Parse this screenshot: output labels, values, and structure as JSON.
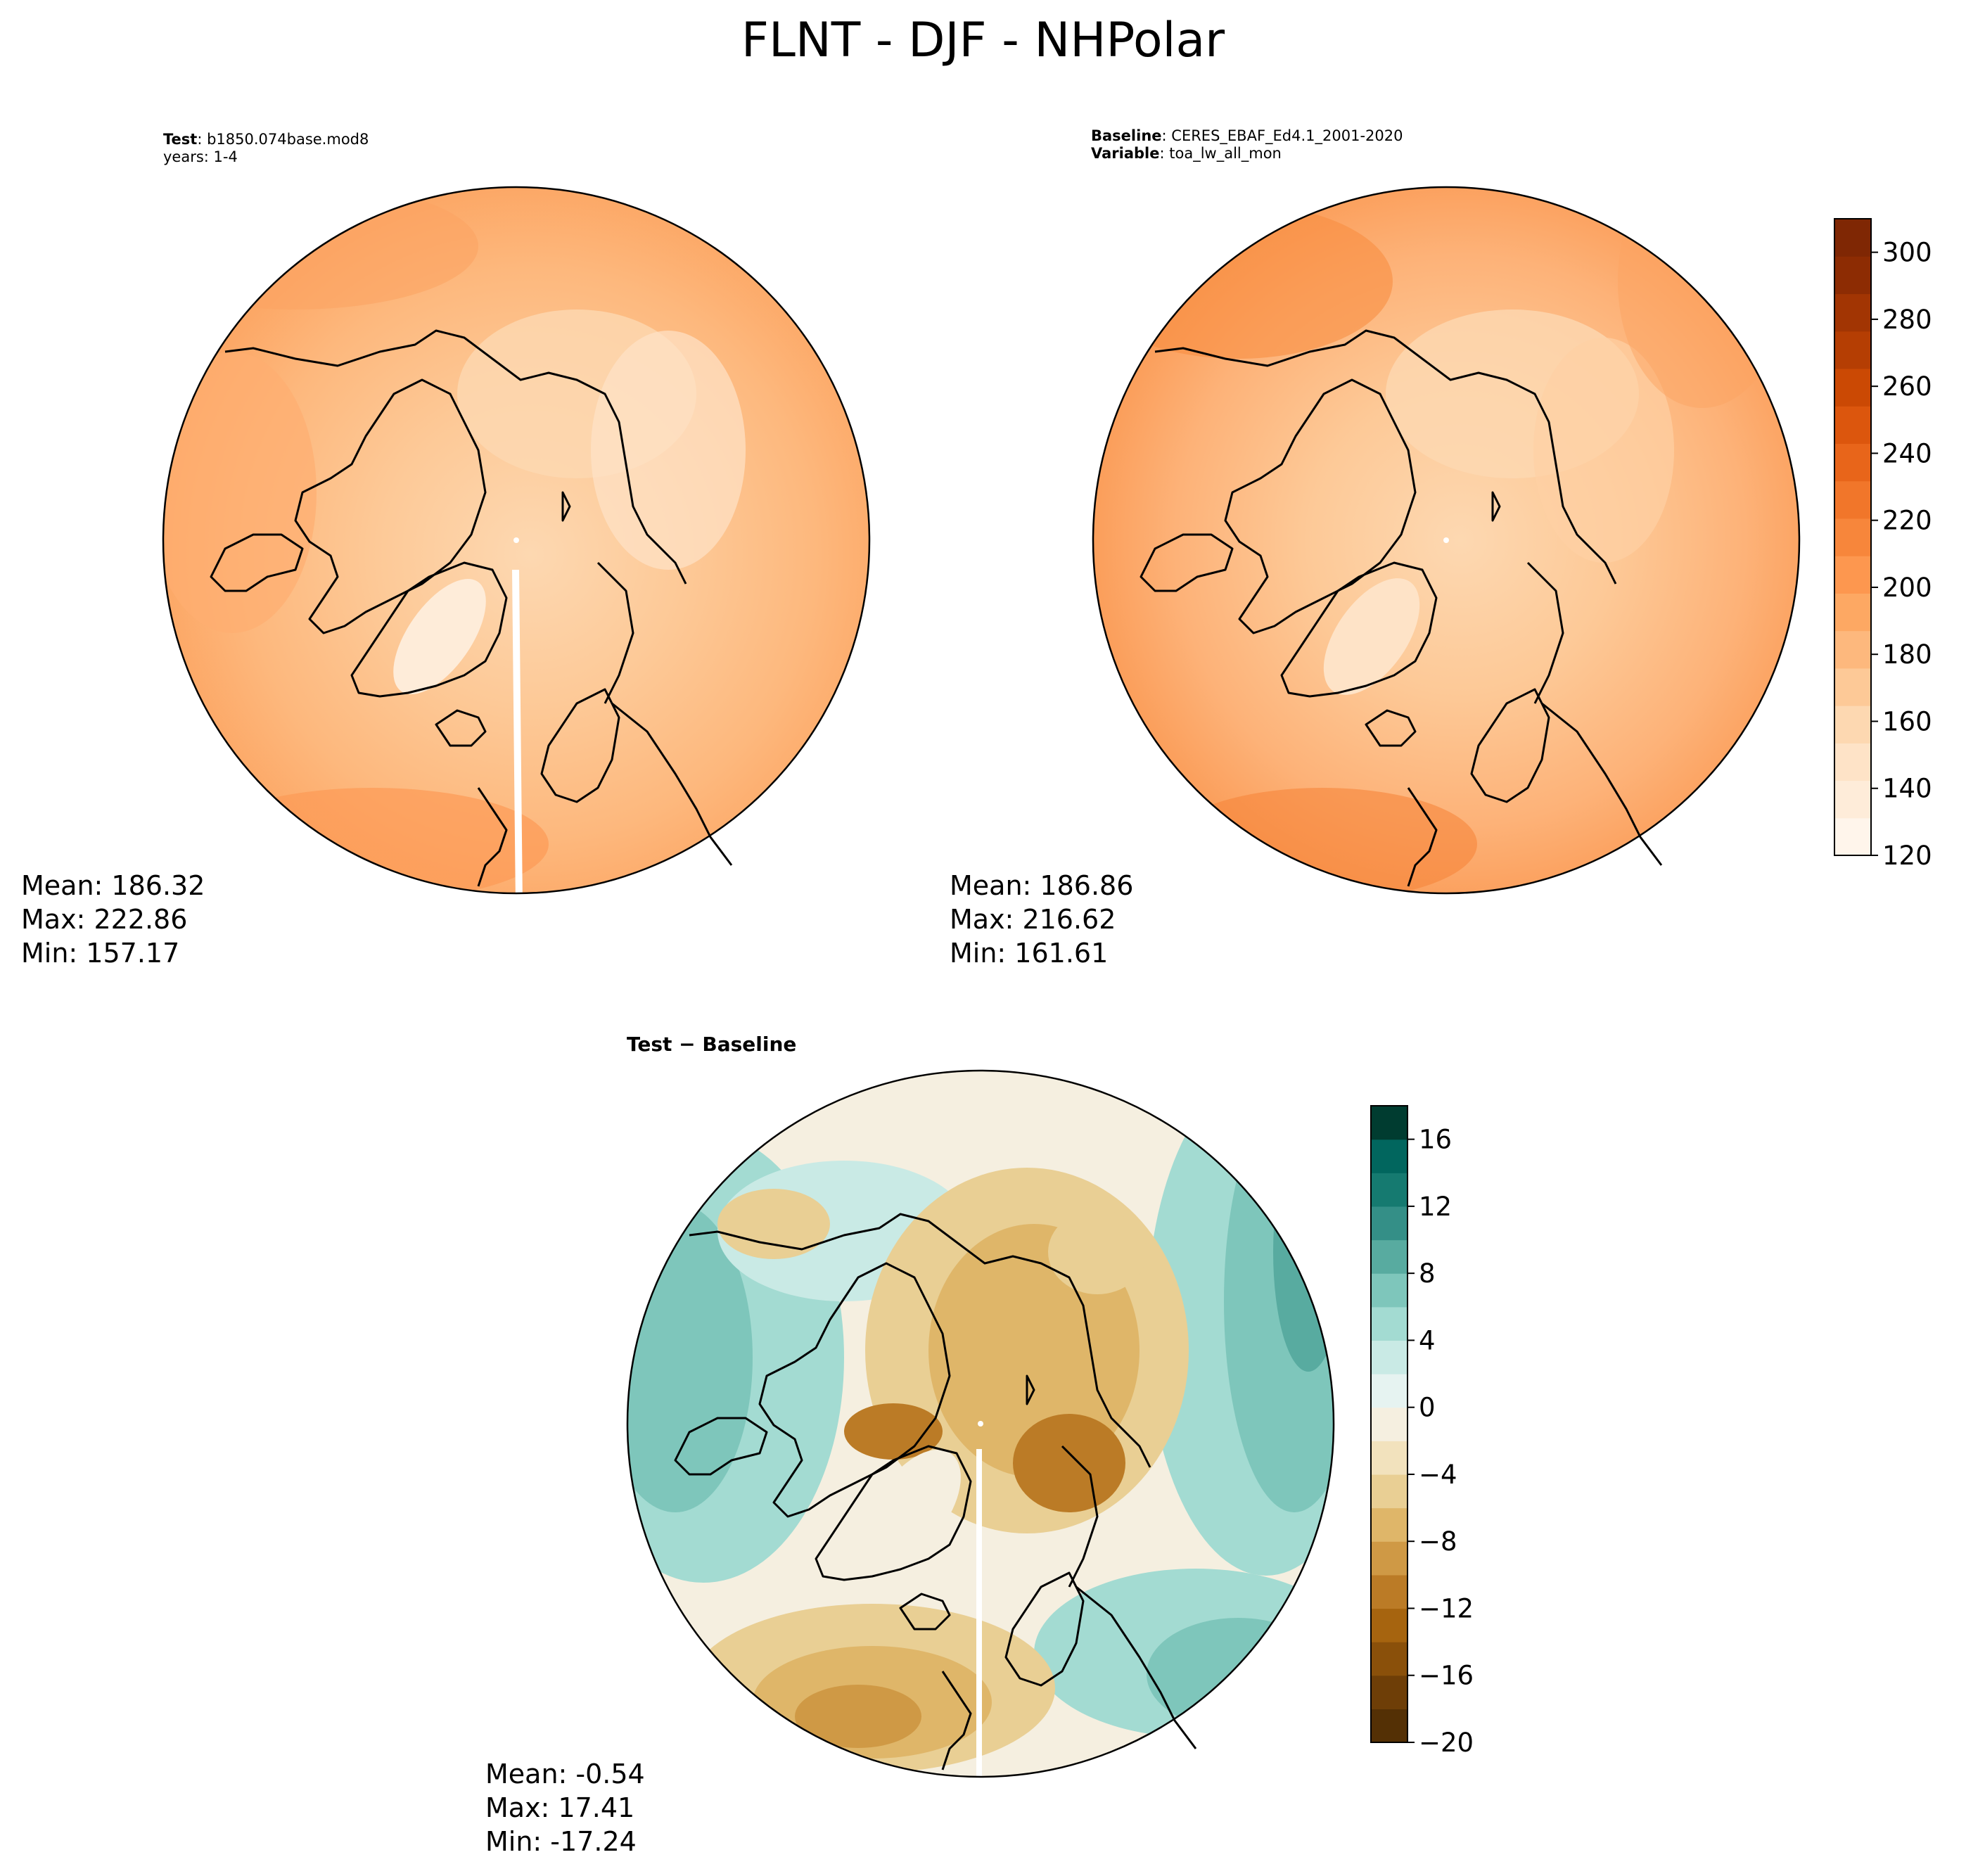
{
  "title": "FLNT - DJF - NHPolar",
  "colors": {
    "land_outline": "#000000",
    "flnt_scale": [
      "#fff5eb",
      "#feecd9",
      "#fee3c7",
      "#fdd8b1",
      "#fdc997",
      "#fdb87d",
      "#fda863",
      "#fd974f",
      "#f7863b",
      "#f1762a",
      "#e8651a",
      "#dc560d",
      "#cb4904",
      "#b53e03",
      "#a23503",
      "#8d2c03",
      "#7f2704"
    ],
    "diff_scale": [
      "#543005",
      "#6e3e07",
      "#8a500a",
      "#a6640f",
      "#bb7b26",
      "#cf9945",
      "#dfb669",
      "#e9cf94",
      "#f2e2bd",
      "#f5efe0",
      "#e6f3f1",
      "#c9eae5",
      "#a3dbd2",
      "#7ec6bb",
      "#58aba0",
      "#348f87",
      "#157a70",
      "#01665e",
      "#003c30"
    ]
  },
  "panels": {
    "test": {
      "name_label": "Test",
      "name_value": "b1850.074base.mod8",
      "years_label": "years: 1-4",
      "mean": "Mean: 186.32",
      "max": "Max: 222.86",
      "min": "Min: 157.17"
    },
    "baseline": {
      "name_label": "Baseline",
      "name_value": "CERES_EBAF_Ed4.1_2001-2020",
      "var_label": "Variable",
      "var_value": "toa_lw_all_mon",
      "mean": "Mean: 186.86",
      "max": "Max: 216.62",
      "min": "Min: 161.61"
    },
    "diff": {
      "title": "Test − Baseline",
      "mean": "Mean: -0.54",
      "max": "Max: 17.41",
      "min": "Min: -17.24"
    }
  },
  "chart_data": [
    {
      "type": "heatmap",
      "panel": "test",
      "projection": "north polar stereographic",
      "stats": {
        "mean": 186.32,
        "max": 222.86,
        "min": 157.17
      }
    },
    {
      "type": "heatmap",
      "panel": "baseline",
      "projection": "north polar stereographic",
      "stats": {
        "mean": 186.86,
        "max": 216.62,
        "min": 161.61
      },
      "colorbar": {
        "range": [
          120,
          310
        ],
        "ticks": [
          "120",
          "140",
          "160",
          "180",
          "200",
          "220",
          "240",
          "260",
          "280",
          "300"
        ]
      }
    },
    {
      "type": "heatmap",
      "panel": "diff",
      "projection": "north polar stereographic",
      "stats": {
        "mean": -0.54,
        "max": 17.41,
        "min": -17.24
      },
      "colorbar": {
        "range": [
          -20,
          18
        ],
        "ticks": [
          "−20",
          "−16",
          "−12",
          "−8",
          "−4",
          "0",
          "4",
          "8",
          "12",
          "16"
        ]
      }
    }
  ]
}
